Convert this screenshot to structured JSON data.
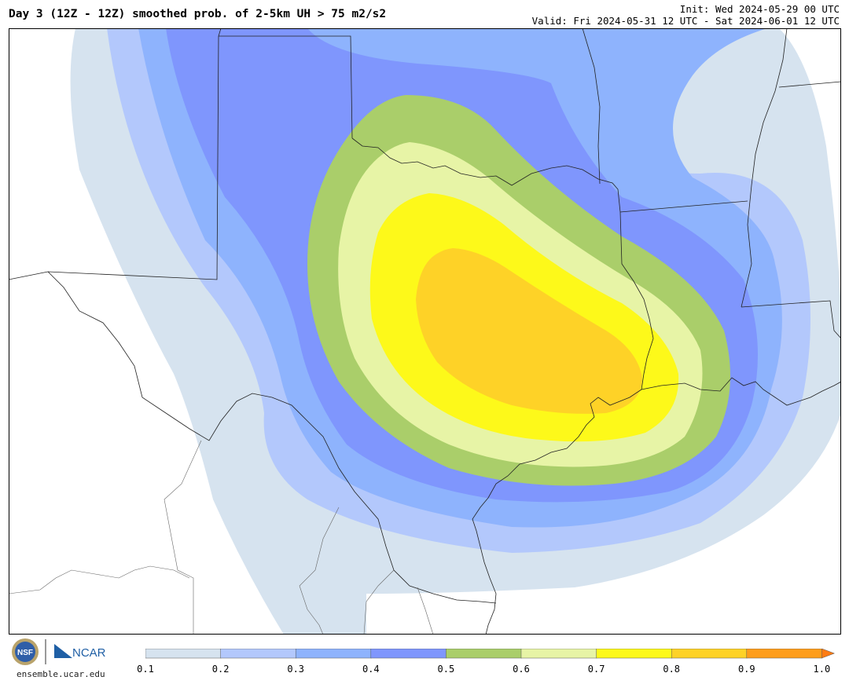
{
  "header": {
    "title": "Day 3 (12Z - 12Z) smoothed prob. of 2-5km UH > 75 m2/s2",
    "init": "Init: Wed 2024-05-29 00 UTC",
    "valid": "Valid: Fri 2024-05-31 12 UTC - Sat 2024-06-01 12 UTC"
  },
  "footer": {
    "credit": "ensemble.ucar.edu",
    "logo_text": {
      "nsf": "NSF",
      "ncar": "NCAR"
    }
  },
  "colorbar": {
    "ticks": [
      "0.1",
      "0.2",
      "0.3",
      "0.4",
      "0.5",
      "0.6",
      "0.7",
      "0.8",
      "0.9",
      "1.0"
    ],
    "colors": [
      "#d6e3ef",
      "#b3c8fc",
      "#8eb3fd",
      "#7f96fd",
      "#aace6a",
      "#e7f4a6",
      "#fdf91a",
      "#fed227",
      "#fe9d1b"
    ],
    "extend_arrow_color": "#fe7c14"
  },
  "map": {
    "region": "Southern Plains / Texas",
    "contour_levels": [
      0.1,
      0.2,
      0.3,
      0.4,
      0.5,
      0.6,
      0.7,
      0.8
    ],
    "max_level": 0.8
  }
}
